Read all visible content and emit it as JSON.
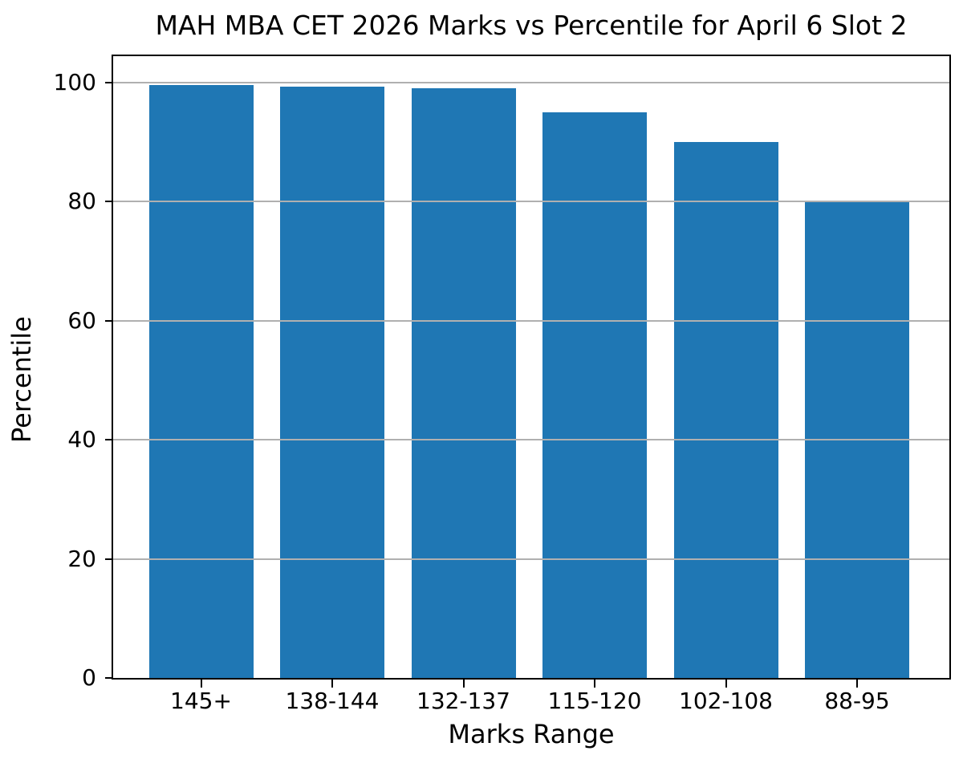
{
  "chart_data": {
    "type": "bar",
    "title": "MAH MBA CET 2026 Marks vs Percentile for April 6 Slot 2",
    "xlabel": "Marks Range",
    "ylabel": "Percentile",
    "categories": [
      "145+",
      "138-144",
      "132-137",
      "115-120",
      "102-108",
      "88-95"
    ],
    "values": [
      99.5,
      99.3,
      99.0,
      95.0,
      90.0,
      80.0
    ],
    "yticks": [
      0,
      20,
      40,
      60,
      80,
      100
    ],
    "ytick_labels": [
      "0",
      "20",
      "40",
      "60",
      "80",
      "100"
    ],
    "ylim": [
      0,
      104.4
    ],
    "grid": true,
    "grid_axis": "y",
    "grid_above_bars": true,
    "legend": false,
    "colors": {
      "bar": "#1f77b4",
      "grid": "#b0b0b0",
      "spine": "#000000",
      "text": "#000000",
      "background": "#ffffff"
    }
  }
}
